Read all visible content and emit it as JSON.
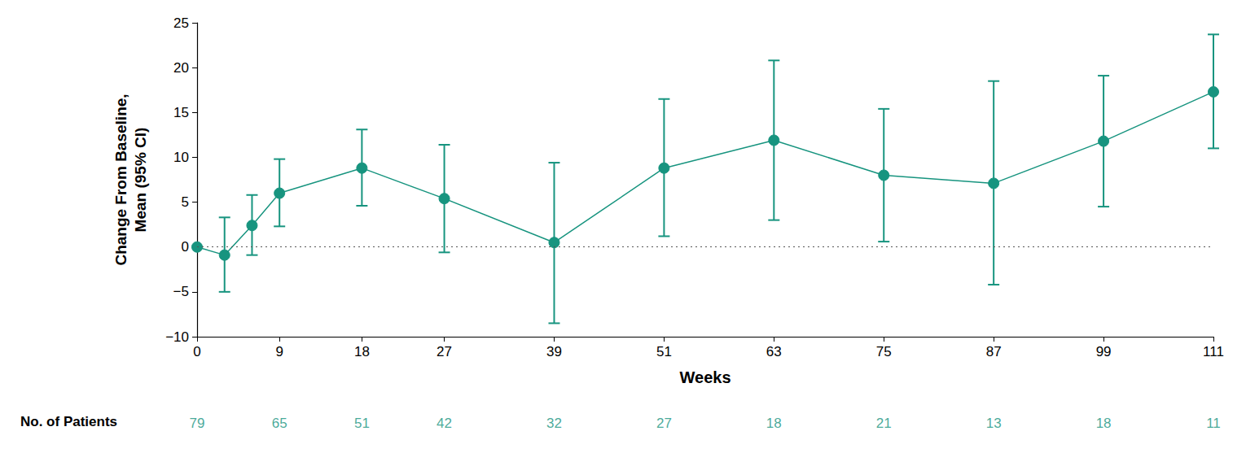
{
  "chart_data": {
    "type": "line",
    "x_label": "Weeks",
    "y_label": "Change From Baseline,\nMean (95% CI)",
    "x": [
      0,
      3,
      6,
      9,
      18,
      27,
      39,
      51,
      63,
      75,
      87,
      99,
      111
    ],
    "values": [
      0,
      -0.9,
      2.4,
      6.0,
      8.8,
      5.4,
      0.5,
      8.8,
      11.9,
      8.0,
      7.1,
      11.8,
      17.3
    ],
    "ci_lower": [
      null,
      -5.0,
      -0.9,
      2.3,
      4.6,
      -0.6,
      -8.5,
      1.2,
      3.0,
      0.6,
      -4.2,
      4.5,
      11.0
    ],
    "ci_upper": [
      null,
      3.3,
      5.8,
      9.8,
      13.1,
      11.4,
      9.4,
      16.5,
      20.8,
      15.4,
      18.5,
      19.1,
      23.7
    ],
    "color": "#17947f",
    "marker": "circle",
    "xlim": [
      0,
      111
    ],
    "xticks": [
      0,
      9,
      18,
      27,
      39,
      51,
      63,
      75,
      87,
      99,
      111
    ],
    "ylim": [
      -10,
      25
    ],
    "yticks": [
      -10,
      -5,
      0,
      5,
      10,
      15,
      20,
      25
    ],
    "reference_line": 0,
    "grid": false,
    "patients": {
      "label": "No. of Patients",
      "x": [
        0,
        9,
        18,
        27,
        39,
        51,
        63,
        75,
        87,
        99,
        111
      ],
      "values": [
        79,
        65,
        51,
        42,
        32,
        27,
        18,
        21,
        13,
        18,
        11
      ]
    }
  }
}
